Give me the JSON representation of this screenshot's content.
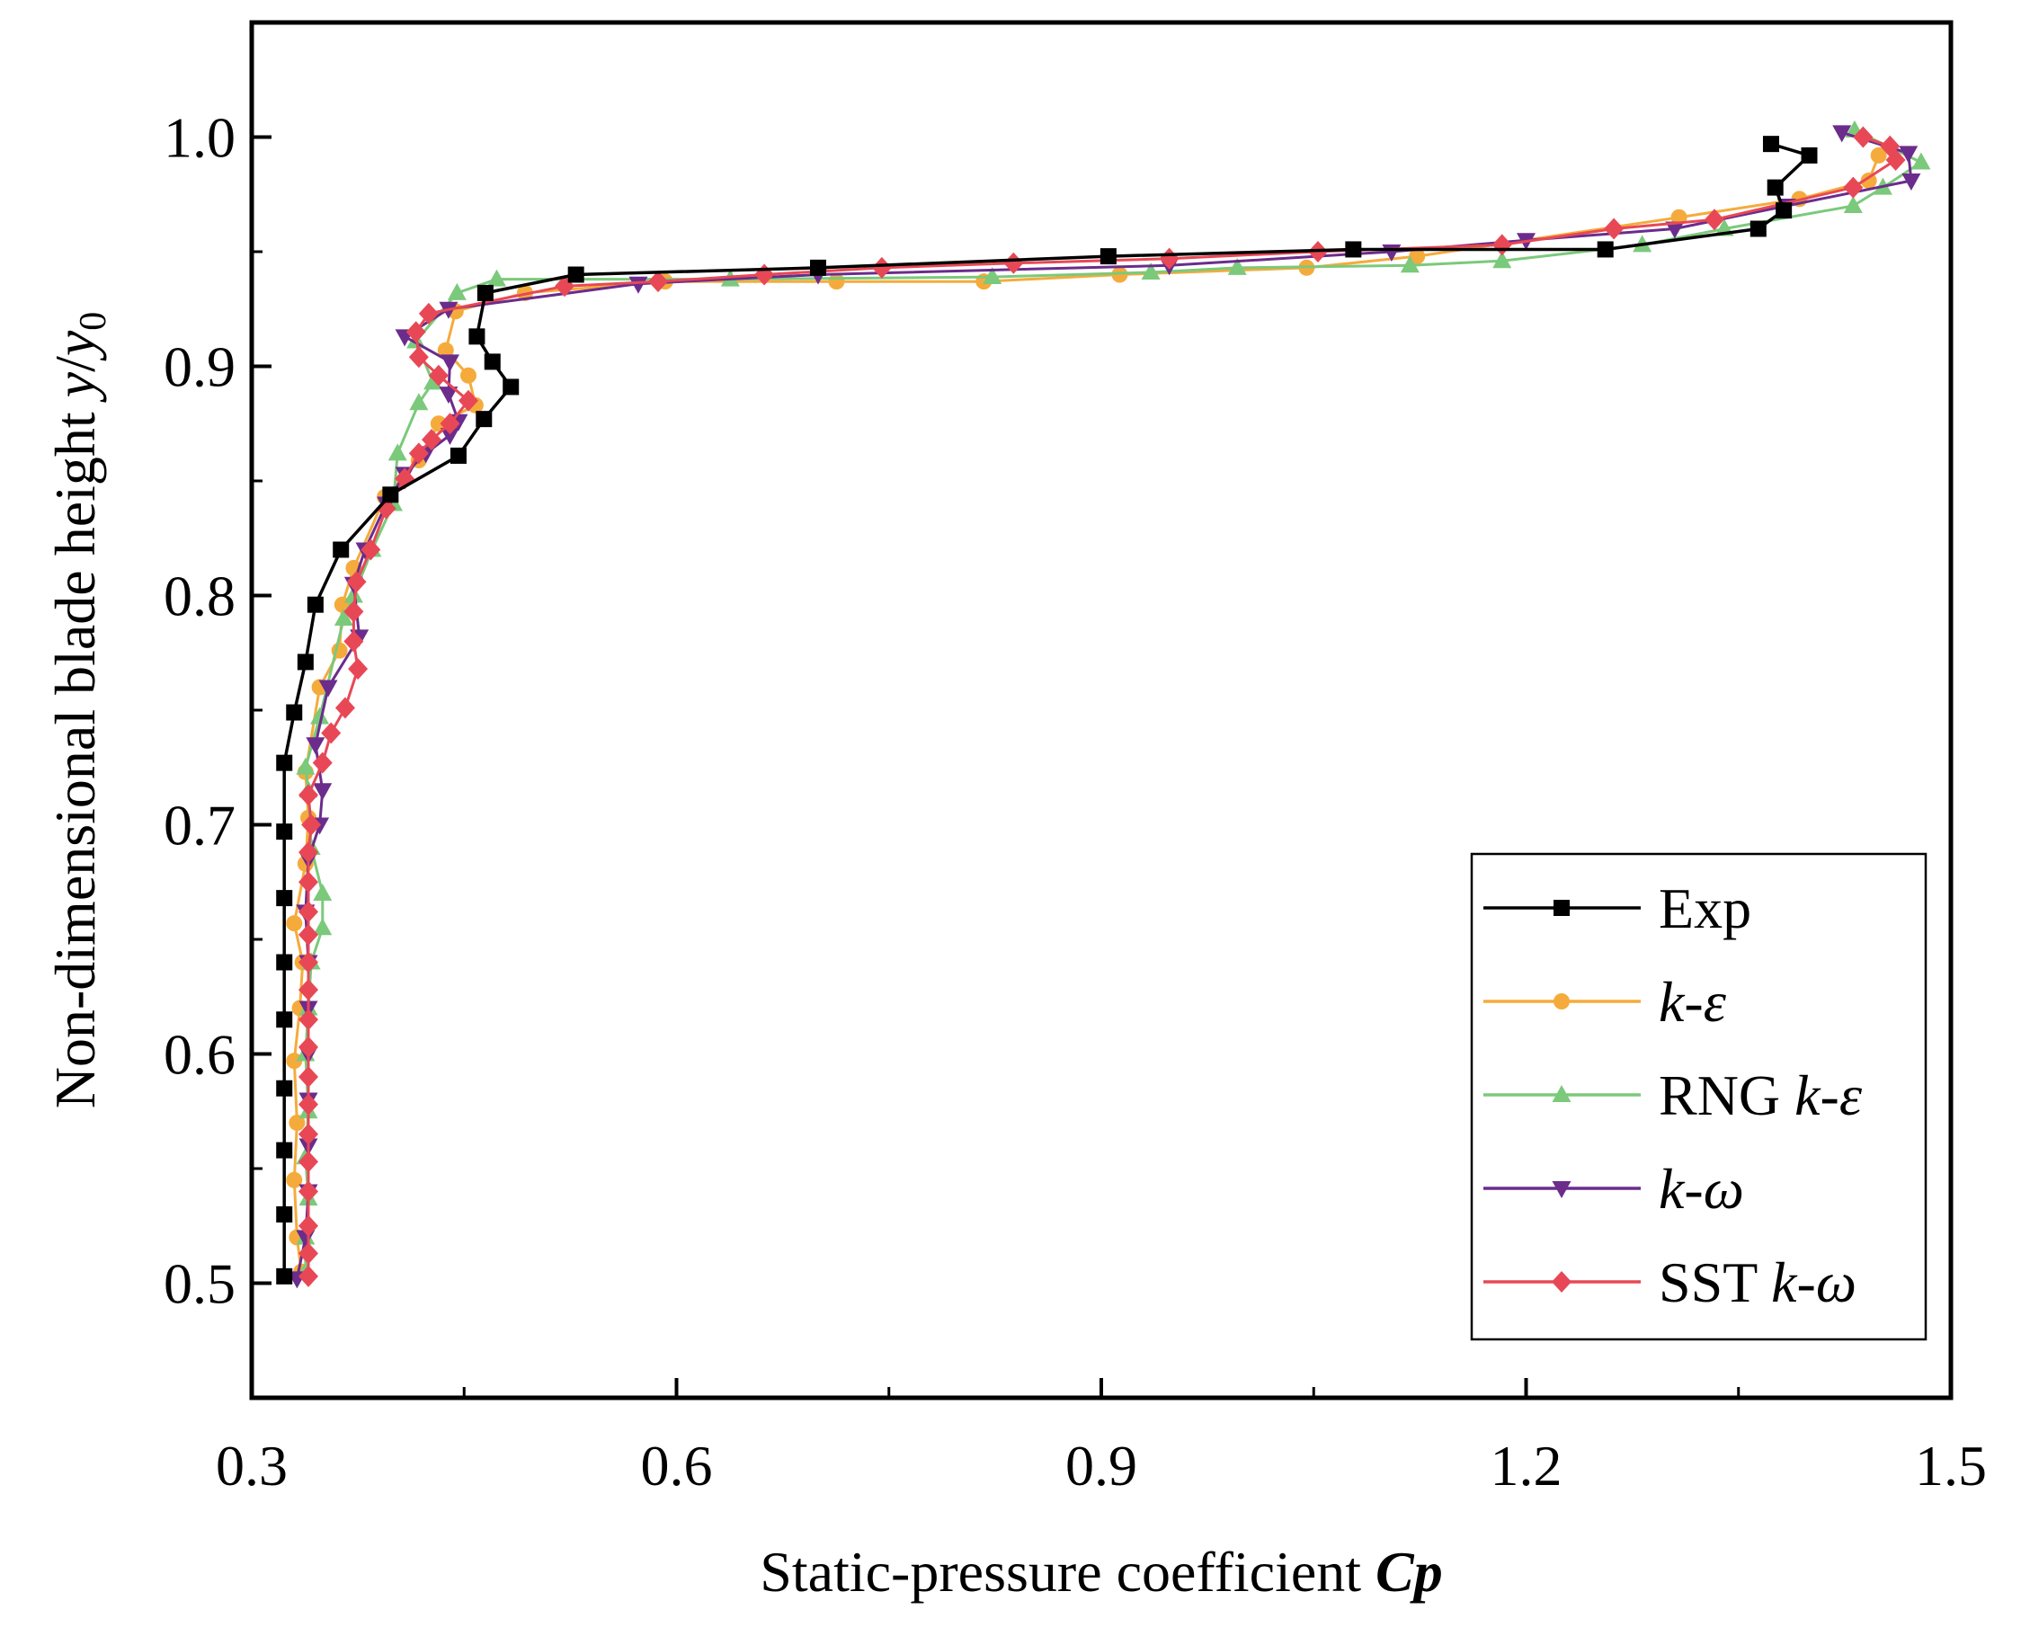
{
  "chart_data": {
    "type": "line",
    "title": "",
    "xlabel": "Static-pressure coefficient Cp",
    "xlabel_parts": {
      "plain": "Static-pressure coefficient ",
      "bold_italic": "Cp"
    },
    "ylabel": "Non-dimensional blade height y/y0",
    "ylabel_parts": {
      "plain": "Non-dimensional blade height ",
      "var": "y",
      "sep": "/",
      "var2": "y",
      "sub": "0"
    },
    "xlim": [
      0.3,
      1.5
    ],
    "ylim": [
      0.45,
      1.05
    ],
    "grid": false,
    "legend_position": "bottom-right",
    "x_ticks": [
      "0.3",
      "0.6",
      "0.9",
      "1.2",
      "1.5"
    ],
    "y_ticks": [
      "0.5",
      "0.6",
      "0.7",
      "0.8",
      "0.9",
      "1.0"
    ],
    "series": [
      {
        "name": "Exp",
        "legend": {
          "plain": "Exp",
          "italic": ""
        },
        "color": "#000000",
        "marker": "square",
        "points": [
          [
            0.323,
            0.503
          ],
          [
            0.323,
            0.53
          ],
          [
            0.323,
            0.558
          ],
          [
            0.323,
            0.585
          ],
          [
            0.323,
            0.615
          ],
          [
            0.323,
            0.64
          ],
          [
            0.323,
            0.668
          ],
          [
            0.323,
            0.697
          ],
          [
            0.323,
            0.727
          ],
          [
            0.33,
            0.749
          ],
          [
            0.338,
            0.771
          ],
          [
            0.345,
            0.796
          ],
          [
            0.363,
            0.82
          ],
          [
            0.398,
            0.844
          ],
          [
            0.446,
            0.861
          ],
          [
            0.464,
            0.877
          ],
          [
            0.483,
            0.891
          ],
          [
            0.47,
            0.902
          ],
          [
            0.459,
            0.913
          ],
          [
            0.465,
            0.932
          ],
          [
            0.529,
            0.94
          ],
          [
            0.7,
            0.943
          ],
          [
            0.905,
            0.948
          ],
          [
            1.078,
            0.951
          ],
          [
            1.256,
            0.951
          ],
          [
            1.364,
            0.96
          ],
          [
            1.382,
            0.968
          ],
          [
            1.376,
            0.978
          ],
          [
            1.4,
            0.992
          ],
          [
            1.373,
            0.997
          ]
        ]
      },
      {
        "name": "k-ε",
        "legend": {
          "plain": "",
          "italic": "k-ε"
        },
        "color": "#F5AB3C",
        "marker": "circle",
        "points": [
          [
            0.335,
            0.505
          ],
          [
            0.332,
            0.52
          ],
          [
            0.33,
            0.545
          ],
          [
            0.332,
            0.57
          ],
          [
            0.33,
            0.597
          ],
          [
            0.334,
            0.62
          ],
          [
            0.336,
            0.64
          ],
          [
            0.33,
            0.657
          ],
          [
            0.338,
            0.683
          ],
          [
            0.34,
            0.703
          ],
          [
            0.338,
            0.723
          ],
          [
            0.348,
            0.76
          ],
          [
            0.362,
            0.776
          ],
          [
            0.364,
            0.796
          ],
          [
            0.372,
            0.812
          ],
          [
            0.394,
            0.843
          ],
          [
            0.418,
            0.859
          ],
          [
            0.432,
            0.875
          ],
          [
            0.458,
            0.883
          ],
          [
            0.453,
            0.896
          ],
          [
            0.437,
            0.907
          ],
          [
            0.444,
            0.924
          ],
          [
            0.493,
            0.932
          ],
          [
            0.592,
            0.937
          ],
          [
            0.713,
            0.937
          ],
          [
            0.817,
            0.937
          ],
          [
            0.913,
            0.94
          ],
          [
            1.045,
            0.943
          ],
          [
            1.123,
            0.948
          ],
          [
            1.308,
            0.965
          ],
          [
            1.393,
            0.973
          ],
          [
            1.442,
            0.981
          ],
          [
            1.449,
            0.992
          ]
        ]
      },
      {
        "name": "RNG k-ε",
        "legend": {
          "plain": "RNG ",
          "italic": "k-ε"
        },
        "color": "#7BC97B",
        "marker": "triangle-up",
        "points": [
          [
            0.338,
            0.505
          ],
          [
            0.338,
            0.52
          ],
          [
            0.34,
            0.537
          ],
          [
            0.338,
            0.555
          ],
          [
            0.34,
            0.575
          ],
          [
            0.338,
            0.6
          ],
          [
            0.34,
            0.62
          ],
          [
            0.342,
            0.64
          ],
          [
            0.35,
            0.655
          ],
          [
            0.35,
            0.67
          ],
          [
            0.342,
            0.69
          ],
          [
            0.34,
            0.715
          ],
          [
            0.338,
            0.725
          ],
          [
            0.348,
            0.747
          ],
          [
            0.365,
            0.79
          ],
          [
            0.372,
            0.8
          ],
          [
            0.385,
            0.82
          ],
          [
            0.4,
            0.84
          ],
          [
            0.403,
            0.862
          ],
          [
            0.418,
            0.884
          ],
          [
            0.428,
            0.893
          ],
          [
            0.416,
            0.911
          ],
          [
            0.445,
            0.932
          ],
          [
            0.473,
            0.938
          ],
          [
            0.638,
            0.938
          ],
          [
            0.823,
            0.939
          ],
          [
            0.935,
            0.941
          ],
          [
            0.996,
            0.943
          ],
          [
            1.118,
            0.944
          ],
          [
            1.183,
            0.946
          ],
          [
            1.282,
            0.953
          ],
          [
            1.34,
            0.96
          ],
          [
            1.431,
            0.97
          ],
          [
            1.452,
            0.978
          ],
          [
            1.479,
            0.989
          ],
          [
            1.432,
            1.003
          ]
        ]
      },
      {
        "name": "k-ω",
        "legend": {
          "plain": "",
          "italic": "k-ω"
        },
        "color": "#6B2C8C",
        "marker": "triangle-down",
        "points": [
          [
            0.332,
            0.502
          ],
          [
            0.338,
            0.52
          ],
          [
            0.34,
            0.54
          ],
          [
            0.34,
            0.56
          ],
          [
            0.34,
            0.58
          ],
          [
            0.34,
            0.6
          ],
          [
            0.34,
            0.62
          ],
          [
            0.34,
            0.64
          ],
          [
            0.338,
            0.662
          ],
          [
            0.34,
            0.685
          ],
          [
            0.348,
            0.7
          ],
          [
            0.35,
            0.715
          ],
          [
            0.345,
            0.735
          ],
          [
            0.354,
            0.76
          ],
          [
            0.376,
            0.782
          ],
          [
            0.372,
            0.805
          ],
          [
            0.38,
            0.82
          ],
          [
            0.395,
            0.84
          ],
          [
            0.408,
            0.853
          ],
          [
            0.423,
            0.862
          ],
          [
            0.44,
            0.87
          ],
          [
            0.446,
            0.876
          ],
          [
            0.439,
            0.888
          ],
          [
            0.44,
            0.902
          ],
          [
            0.408,
            0.913
          ],
          [
            0.439,
            0.925
          ],
          [
            0.573,
            0.936
          ],
          [
            0.7,
            0.94
          ],
          [
            0.948,
            0.944
          ],
          [
            1.105,
            0.95
          ],
          [
            1.2,
            0.955
          ],
          [
            1.305,
            0.96
          ],
          [
            1.384,
            0.97
          ],
          [
            1.472,
            0.981
          ],
          [
            1.47,
            0.993
          ],
          [
            1.423,
            1.002
          ]
        ]
      },
      {
        "name": "SST k-ω",
        "legend": {
          "plain": "SST ",
          "italic": "k-ω"
        },
        "color": "#E84855",
        "marker": "diamond",
        "points": [
          [
            0.34,
            0.503
          ],
          [
            0.34,
            0.513
          ],
          [
            0.34,
            0.525
          ],
          [
            0.34,
            0.54
          ],
          [
            0.34,
            0.553
          ],
          [
            0.34,
            0.565
          ],
          [
            0.34,
            0.578
          ],
          [
            0.34,
            0.59
          ],
          [
            0.34,
            0.603
          ],
          [
            0.34,
            0.615
          ],
          [
            0.34,
            0.628
          ],
          [
            0.34,
            0.64
          ],
          [
            0.34,
            0.652
          ],
          [
            0.34,
            0.662
          ],
          [
            0.34,
            0.675
          ],
          [
            0.34,
            0.688
          ],
          [
            0.342,
            0.7
          ],
          [
            0.34,
            0.713
          ],
          [
            0.35,
            0.727
          ],
          [
            0.356,
            0.74
          ],
          [
            0.366,
            0.751
          ],
          [
            0.375,
            0.768
          ],
          [
            0.372,
            0.78
          ],
          [
            0.372,
            0.793
          ],
          [
            0.374,
            0.806
          ],
          [
            0.384,
            0.82
          ],
          [
            0.395,
            0.838
          ],
          [
            0.408,
            0.851
          ],
          [
            0.418,
            0.862
          ],
          [
            0.427,
            0.868
          ],
          [
            0.44,
            0.875
          ],
          [
            0.453,
            0.885
          ],
          [
            0.432,
            0.896
          ],
          [
            0.418,
            0.904
          ],
          [
            0.416,
            0.915
          ],
          [
            0.425,
            0.923
          ],
          [
            0.521,
            0.935
          ],
          [
            0.587,
            0.937
          ],
          [
            0.662,
            0.94
          ],
          [
            0.745,
            0.943
          ],
          [
            0.838,
            0.945
          ],
          [
            0.948,
            0.947
          ],
          [
            1.053,
            0.95
          ],
          [
            1.183,
            0.953
          ],
          [
            1.262,
            0.96
          ],
          [
            1.333,
            0.964
          ],
          [
            1.431,
            0.978
          ],
          [
            1.461,
            0.99
          ],
          [
            1.457,
            0.996
          ],
          [
            1.438,
            1.0
          ]
        ]
      }
    ]
  }
}
